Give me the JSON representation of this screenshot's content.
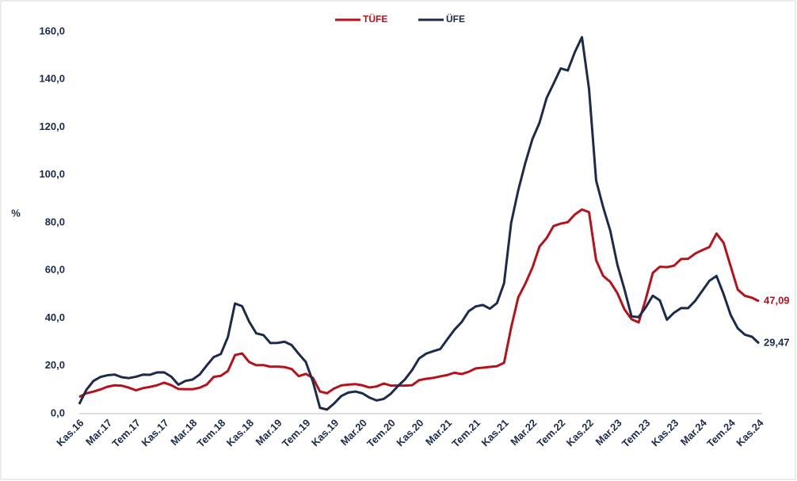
{
  "chart_data": {
    "type": "line",
    "y_label": "%",
    "categories": [
      "Kas.16",
      null,
      null,
      null,
      "Mar.17",
      null,
      null,
      null,
      "Tem.17",
      null,
      null,
      null,
      "Kas.17",
      null,
      null,
      null,
      "Mar.18",
      null,
      null,
      null,
      "Tem.18",
      null,
      null,
      null,
      "Kas.18",
      null,
      null,
      null,
      "Mar.19",
      null,
      null,
      null,
      "Tem.19",
      null,
      null,
      null,
      "Kas.19",
      null,
      null,
      null,
      "Mar.20",
      null,
      null,
      null,
      "Tem.20",
      null,
      null,
      null,
      "Kas.20",
      null,
      null,
      null,
      "Mar.21",
      null,
      null,
      null,
      "Tem.21",
      null,
      null,
      null,
      "Kas.21",
      null,
      null,
      null,
      "Mar.22",
      null,
      null,
      null,
      "Tem.22",
      null,
      null,
      null,
      "Kas.22",
      null,
      null,
      null,
      "Mar.23",
      null,
      null,
      null,
      "Tem.23",
      null,
      null,
      null,
      "Kas.23",
      null,
      null,
      null,
      "Mar.24",
      null,
      null,
      null,
      "Tem.24",
      null,
      null,
      null,
      "Kas.24"
    ],
    "series": [
      {
        "name": "TÜFE",
        "color": "#b5121b",
        "values": [
          7.0,
          8.53,
          9.22,
          10.13,
          11.29,
          11.87,
          11.72,
          10.9,
          9.79,
          10.68,
          11.2,
          11.9,
          12.98,
          11.92,
          10.35,
          10.26,
          10.23,
          10.85,
          12.15,
          15.39,
          15.85,
          17.9,
          24.52,
          25.24,
          21.62,
          20.3,
          20.35,
          19.67,
          19.71,
          19.5,
          18.71,
          15.72,
          16.65,
          15.01,
          9.26,
          8.55,
          10.56,
          11.84,
          12.15,
          12.37,
          11.86,
          10.94,
          11.39,
          12.62,
          11.76,
          11.77,
          11.75,
          11.89,
          14.03,
          14.6,
          14.97,
          15.61,
          16.19,
          17.14,
          16.59,
          17.53,
          18.95,
          19.25,
          19.58,
          19.89,
          21.31,
          36.08,
          48.69,
          54.44,
          61.14,
          69.97,
          73.5,
          78.62,
          79.6,
          80.21,
          83.45,
          85.51,
          84.39,
          64.27,
          57.68,
          55.18,
          50.51,
          43.68,
          39.59,
          38.21,
          47.83,
          58.94,
          61.53,
          61.36,
          61.98,
          64.77,
          64.86,
          67.07,
          68.5,
          69.8,
          75.45,
          71.6,
          61.78,
          51.97,
          49.38,
          48.58,
          47.09
        ],
        "value_labels": [
          null,
          null,
          null,
          null,
          null,
          null,
          null,
          null,
          null,
          null,
          null,
          null,
          null,
          null,
          null,
          null,
          null,
          null,
          null,
          null,
          null,
          null,
          null,
          null,
          null,
          null,
          null,
          null,
          null,
          null,
          null,
          null,
          null,
          null,
          null,
          null,
          null,
          null,
          null,
          null,
          null,
          null,
          null,
          null,
          null,
          null,
          null,
          null,
          null,
          null,
          null,
          null,
          null,
          null,
          null,
          null,
          null,
          null,
          null,
          null,
          null,
          null,
          null,
          null,
          null,
          null,
          null,
          null,
          null,
          null,
          null,
          null,
          null,
          null,
          null,
          null,
          null,
          null,
          null,
          null,
          null,
          null,
          null,
          null,
          null,
          null,
          null,
          null,
          null,
          null,
          null,
          null,
          null,
          null,
          null,
          null,
          "47,09"
        ]
      },
      {
        "name": "ÜFE",
        "color": "#1c2b4b",
        "values": [
          4.0,
          9.94,
          13.69,
          15.36,
          16.09,
          16.37,
          15.26,
          14.87,
          15.45,
          16.34,
          16.28,
          17.28,
          17.3,
          15.47,
          12.14,
          13.71,
          14.28,
          16.37,
          20.16,
          23.71,
          25.0,
          32.13,
          46.15,
          45.01,
          38.54,
          33.64,
          32.93,
          29.59,
          29.64,
          30.12,
          28.71,
          25.04,
          21.66,
          13.45,
          2.45,
          1.7,
          4.26,
          7.36,
          8.84,
          9.26,
          8.5,
          6.71,
          5.53,
          6.17,
          8.33,
          11.53,
          14.33,
          18.2,
          23.11,
          25.15,
          26.16,
          27.09,
          31.2,
          35.17,
          38.33,
          42.89,
          44.92,
          45.52,
          43.96,
          46.31,
          54.62,
          79.89,
          93.53,
          105.01,
          114.97,
          121.82,
          132.16,
          138.31,
          144.61,
          143.75,
          151.5,
          157.69,
          136.02,
          97.72,
          86.46,
          76.61,
          62.43,
          52.11,
          40.76,
          40.42,
          44.5,
          49.41,
          47.44,
          39.35,
          42.25,
          44.22,
          44.2,
          47.29,
          51.47,
          55.66,
          57.68,
          50.09,
          41.37,
          35.75,
          33.09,
          32.24,
          29.47
        ],
        "value_labels": [
          null,
          null,
          null,
          null,
          null,
          null,
          null,
          null,
          null,
          null,
          null,
          null,
          null,
          null,
          null,
          null,
          null,
          null,
          null,
          null,
          null,
          null,
          null,
          null,
          null,
          null,
          null,
          null,
          null,
          null,
          null,
          null,
          null,
          null,
          null,
          null,
          null,
          null,
          null,
          null,
          null,
          null,
          null,
          null,
          null,
          null,
          null,
          null,
          null,
          null,
          null,
          null,
          null,
          null,
          null,
          null,
          null,
          null,
          null,
          null,
          null,
          null,
          null,
          null,
          null,
          null,
          null,
          null,
          null,
          null,
          null,
          null,
          null,
          null,
          null,
          null,
          null,
          null,
          null,
          null,
          null,
          null,
          null,
          null,
          null,
          null,
          null,
          null,
          null,
          null,
          null,
          null,
          null,
          null,
          null,
          null,
          "29,47"
        ]
      }
    ],
    "ylim": [
      0,
      160
    ],
    "yticks": [
      {
        "value": 0,
        "label": "0,0"
      },
      {
        "value": 20,
        "label": "20,0"
      },
      {
        "value": 40,
        "label": "40,0"
      },
      {
        "value": 60,
        "label": "60,0"
      },
      {
        "value": 80,
        "label": "80,0"
      },
      {
        "value": 100,
        "label": "100,0"
      },
      {
        "value": 120,
        "label": "120,0"
      },
      {
        "value": 140,
        "label": "140,0"
      },
      {
        "value": 160,
        "label": "160,0"
      }
    ],
    "legend": "top"
  }
}
